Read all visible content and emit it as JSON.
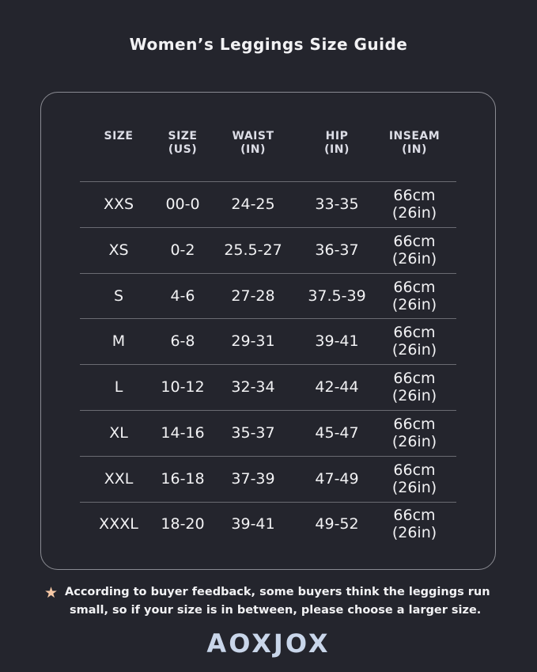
{
  "title": "Women’s Leggings Size Guide",
  "table": {
    "headers": [
      [
        "SIZE",
        ""
      ],
      [
        "SIZE",
        "(US)"
      ],
      [
        "WAIST",
        "(IN)"
      ],
      [
        "HIP",
        "(IN)"
      ],
      [
        "INSEAM",
        "(IN)"
      ]
    ],
    "rows": [
      [
        "XXS",
        "00-0",
        "24-25",
        "33-35",
        "66cm",
        "(26in)"
      ],
      [
        "XS",
        "0-2",
        "25.5-27",
        "36-37",
        "66cm",
        "(26in)"
      ],
      [
        "S",
        "4-6",
        "27-28",
        "37.5-39",
        "66cm",
        "(26in)"
      ],
      [
        "M",
        "6-8",
        "29-31",
        "39-41",
        "66cm",
        "(26in)"
      ],
      [
        "L",
        "10-12",
        "32-34",
        "42-44",
        "66cm",
        "(26in)"
      ],
      [
        "XL",
        "14-16",
        "35-37",
        "45-47",
        "66cm",
        "(26in)"
      ],
      [
        "XXL",
        "16-18",
        "37-39",
        "47-49",
        "66cm",
        "(26in)"
      ],
      [
        "XXXL",
        "18-20",
        "39-41",
        "49-52",
        "66cm",
        "(26in)"
      ]
    ]
  },
  "note": {
    "icon": "star-icon",
    "line1": "According to buyer feedback, some buyers think the leggings run",
    "line2": "small, so if your size is in between, please choose a larger size."
  },
  "brand": "AOXJOX",
  "colors": {
    "background": "#24252d",
    "star": "#f7c9a6",
    "logo": "#c9d6ea"
  }
}
